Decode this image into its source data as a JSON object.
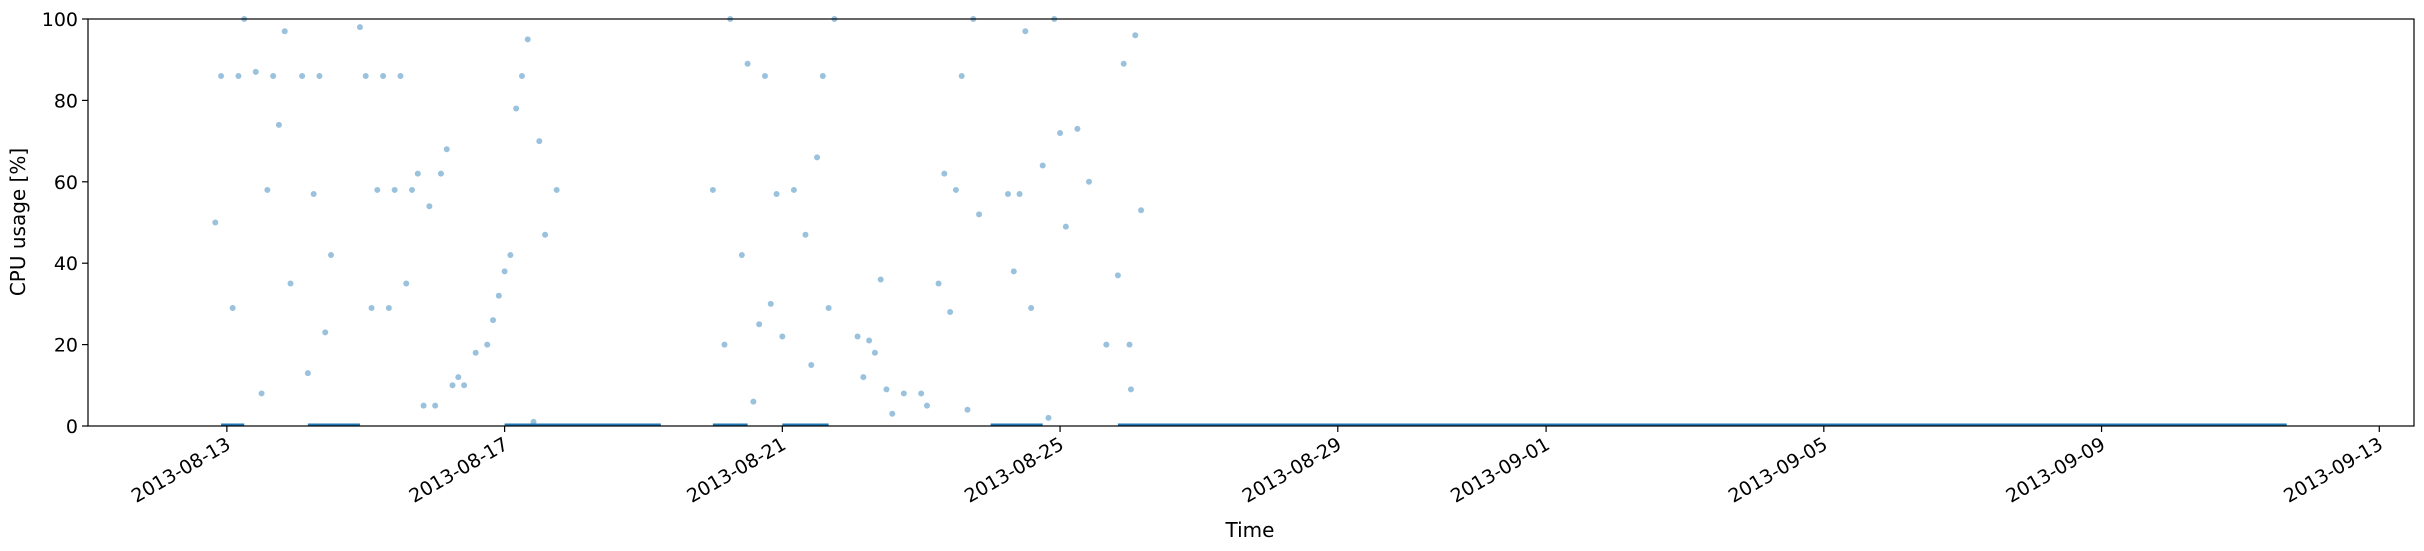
{
  "chart_data": {
    "type": "scatter",
    "title": "",
    "xlabel": "Time",
    "ylabel": "CPU usage [%]",
    "xlim": [
      "2013-08-11T00:00",
      "2013-09-13T12:00"
    ],
    "ylim": [
      0,
      100
    ],
    "x_ticks": [
      "2013-08-13",
      "2013-08-17",
      "2013-08-21",
      "2013-08-25",
      "2013-08-29",
      "2013-09-01",
      "2013-09-05",
      "2013-09-09",
      "2013-09-13"
    ],
    "y_ticks": [
      "0",
      "20",
      "40",
      "60",
      "80",
      "100"
    ],
    "grid": false,
    "legend": "none",
    "marker_color": "#1f77b4",
    "marker_alpha": 0.45,
    "series": [
      {
        "points": [
          [
            "2013-08-12T22:00",
            86
          ],
          [
            "2013-08-13T04:00",
            86
          ],
          [
            "2013-08-13T10:00",
            87
          ],
          [
            "2013-08-13T16:00",
            86
          ],
          [
            "2013-08-13T20:00",
            97
          ],
          [
            "2013-08-14T02:00",
            86
          ],
          [
            "2013-08-14T08:00",
            86
          ],
          [
            "2013-08-13T02:00",
            29
          ],
          [
            "2013-08-13T14:00",
            58
          ],
          [
            "2013-08-13T22:00",
            35
          ],
          [
            "2013-08-14T06:00",
            57
          ],
          [
            "2013-08-14T12:00",
            42
          ],
          [
            "2013-08-13T06:00",
            100
          ],
          [
            "2013-08-13T18:00",
            74
          ],
          [
            "2013-08-14T04:00",
            13
          ],
          [
            "2013-08-12T20:00",
            50
          ],
          [
            "2013-08-13T12:00",
            8
          ],
          [
            "2013-08-14T10:00",
            23
          ],
          [
            "2013-08-15T00:00",
            86
          ],
          [
            "2013-08-15T06:00",
            86
          ],
          [
            "2013-08-15T12:00",
            86
          ],
          [
            "2013-08-15T04:00",
            58
          ],
          [
            "2013-08-15T10:00",
            58
          ],
          [
            "2013-08-15T16:00",
            58
          ],
          [
            "2013-08-15T02:00",
            29
          ],
          [
            "2013-08-15T08:00",
            29
          ],
          [
            "2013-08-15T14:00",
            35
          ],
          [
            "2013-08-14T22:00",
            98
          ],
          [
            "2013-08-15T18:00",
            62
          ],
          [
            "2013-08-15T20:00",
            5
          ],
          [
            "2013-08-16T00:00",
            5
          ],
          [
            "2013-08-15T22:00",
            54
          ],
          [
            "2013-08-16T02:00",
            62
          ],
          [
            "2013-08-16T04:00",
            68
          ],
          [
            "2013-08-16T06:00",
            10
          ],
          [
            "2013-08-16T10:00",
            10
          ],
          [
            "2013-08-16T14:00",
            18
          ],
          [
            "2013-08-16T18:00",
            20
          ],
          [
            "2013-08-16T08:00",
            12
          ],
          [
            "2013-08-16T20:00",
            26
          ],
          [
            "2013-08-16T22:00",
            32
          ],
          [
            "2013-08-17T00:00",
            38
          ],
          [
            "2013-08-17T02:00",
            42
          ],
          [
            "2013-08-17T04:00",
            78
          ],
          [
            "2013-08-17T06:00",
            86
          ],
          [
            "2013-08-17T08:00",
            95
          ],
          [
            "2013-08-17T12:00",
            70
          ],
          [
            "2013-08-17T14:00",
            47
          ],
          [
            "2013-08-17T10:00",
            1
          ],
          [
            "2013-08-17T18:00",
            58
          ],
          [
            "2013-08-20T00:00",
            58
          ],
          [
            "2013-08-20T06:00",
            100
          ],
          [
            "2013-08-20T12:00",
            89
          ],
          [
            "2013-08-20T18:00",
            86
          ],
          [
            "2013-08-20T22:00",
            57
          ],
          [
            "2013-08-20T04:00",
            20
          ],
          [
            "2013-08-20T16:00",
            25
          ],
          [
            "2013-08-20T20:00",
            30
          ],
          [
            "2013-08-21T00:00",
            22
          ],
          [
            "2013-08-20T10:00",
            42
          ],
          [
            "2013-08-20T14:00",
            6
          ],
          [
            "2013-08-21T04:00",
            58
          ],
          [
            "2013-08-21T08:00",
            47
          ],
          [
            "2013-08-21T14:00",
            86
          ],
          [
            "2013-08-21T18:00",
            100
          ],
          [
            "2013-08-21T16:00",
            29
          ],
          [
            "2013-08-21T12:00",
            66
          ],
          [
            "2013-08-21T10:00",
            15
          ],
          [
            "2013-08-22T02:00",
            22
          ],
          [
            "2013-08-22T06:00",
            21
          ],
          [
            "2013-08-22T04:00",
            12
          ],
          [
            "2013-08-22T08:00",
            18
          ],
          [
            "2013-08-22T12:00",
            9
          ],
          [
            "2013-08-22T18:00",
            8
          ],
          [
            "2013-08-23T00:00",
            8
          ],
          [
            "2013-08-22T10:00",
            36
          ],
          [
            "2013-08-22T14:00",
            3
          ],
          [
            "2013-08-23T02:00",
            5
          ],
          [
            "2013-08-23T08:00",
            62
          ],
          [
            "2013-08-23T12:00",
            58
          ],
          [
            "2013-08-23T06:00",
            35
          ],
          [
            "2013-08-23T14:00",
            86
          ],
          [
            "2013-08-23T18:00",
            100
          ],
          [
            "2013-08-23T20:00",
            52
          ],
          [
            "2013-08-23T10:00",
            28
          ],
          [
            "2013-08-23T16:00",
            4
          ],
          [
            "2013-08-24T06:00",
            57
          ],
          [
            "2013-08-24T10:00",
            57
          ],
          [
            "2013-08-24T12:00",
            97
          ],
          [
            "2013-08-24T08:00",
            38
          ],
          [
            "2013-08-24T14:00",
            29
          ],
          [
            "2013-08-24T18:00",
            64
          ],
          [
            "2013-08-25T00:00",
            72
          ],
          [
            "2013-08-24T22:00",
            100
          ],
          [
            "2013-08-25T02:00",
            49
          ],
          [
            "2013-08-24T20:00",
            2
          ],
          [
            "2013-08-25T06:00",
            73
          ],
          [
            "2013-08-25T10:00",
            60
          ],
          [
            "2013-08-25T16:00",
            20
          ],
          [
            "2013-08-26T00:00",
            20
          ],
          [
            "2013-08-26T02:00",
            96
          ],
          [
            "2013-08-25T22:00",
            89
          ],
          [
            "2013-08-26T04:00",
            53
          ],
          [
            "2013-08-25T20:00",
            37
          ],
          [
            "2013-08-26T00:30",
            9
          ]
        ]
      }
    ],
    "baseline_segments": [
      [
        "2013-08-12T22:00",
        "2013-08-13T06:00"
      ],
      [
        "2013-08-14T04:00",
        "2013-08-14T22:00"
      ],
      [
        "2013-08-17T00:00",
        "2013-08-19T06:00"
      ],
      [
        "2013-08-20T00:00",
        "2013-08-20T12:00"
      ],
      [
        "2013-08-21T00:00",
        "2013-08-21T16:00"
      ],
      [
        "2013-08-24T00:00",
        "2013-08-24T18:00"
      ],
      [
        "2013-08-25T20:00",
        "2013-09-11T16:00"
      ]
    ]
  }
}
